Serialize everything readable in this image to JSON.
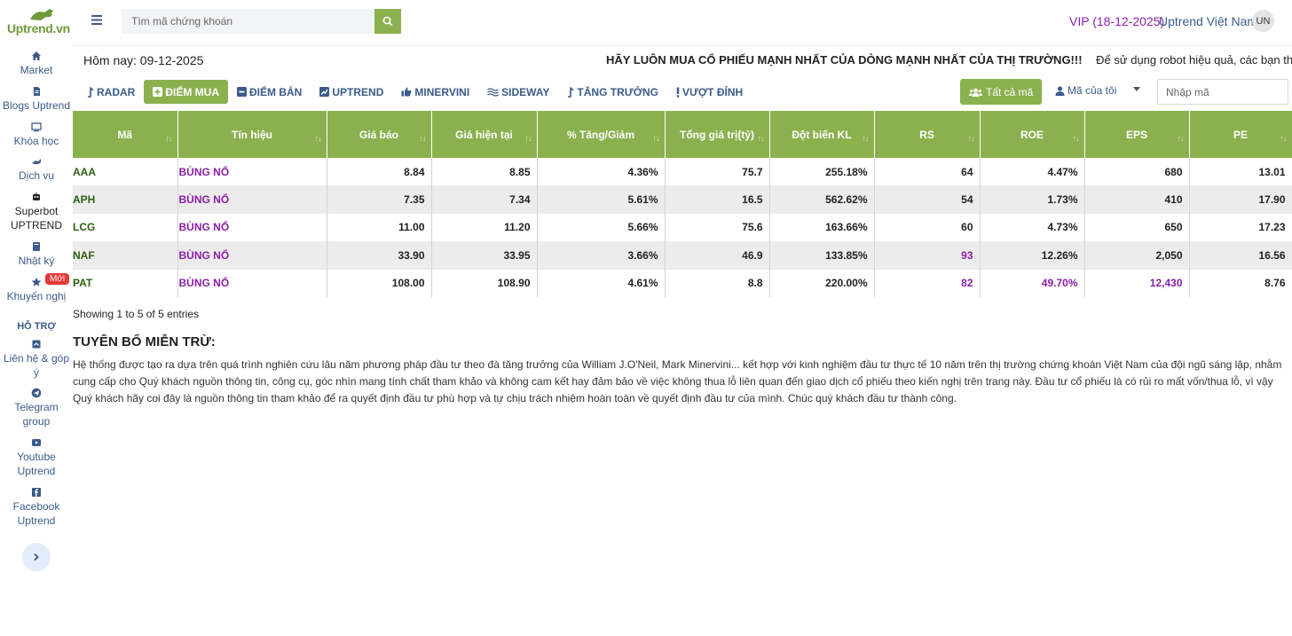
{
  "brand": {
    "logo_text": "Uptrend.vn",
    "accent": "#8bb14f",
    "purple": "#8b1fa9",
    "link": "#3b5b8a"
  },
  "sidebar": {
    "items": [
      {
        "label": "Market",
        "icon": "home-icon"
      },
      {
        "label": "Blogs Uptrend",
        "icon": "file-icon"
      },
      {
        "label": "Khóa học",
        "icon": "monitor-icon"
      },
      {
        "label": "Dịch vụ",
        "icon": "service-icon"
      },
      {
        "label": "Superbot UPTREND",
        "icon": "robot-icon"
      },
      {
        "label": "Nhật ký",
        "icon": "book-icon"
      },
      {
        "label": "Khuyến nghị",
        "icon": "star-icon",
        "badge": "Mới"
      }
    ],
    "support_title": "HỖ TRỢ",
    "support_items": [
      {
        "label": "Liên hệ & góp ý",
        "icon": "contact-icon"
      },
      {
        "label": "Telegram group",
        "icon": "telegram-icon"
      },
      {
        "label": "Youtube Uptrend",
        "icon": "youtube-icon"
      },
      {
        "label": "Facebook Uptrend",
        "icon": "facebook-icon"
      }
    ]
  },
  "topbar": {
    "search_placeholder": "Tìm mã chứng khoán",
    "vip": "VIP (18-12-2025)",
    "username": "Uptrend Việt Nam",
    "avatar_initials": "UN"
  },
  "info": {
    "today": "Hôm nay: 09-12-2025",
    "headline": "HÃY LUÔN MUA CỔ PHIẾU MẠNH NHẤT CỦA DÒNG MẠNH NHẤT CỦA THỊ TRƯỜNG!!!",
    "subline": "Để sử dụng robot hiệu quả, các bạn tham gia nh"
  },
  "tabs": [
    {
      "label": "RADAR",
      "icon": "arrow-up-icon"
    },
    {
      "label": "ĐIỂM MUA",
      "icon": "plus-square-icon",
      "active": true
    },
    {
      "label": "ĐIỂM BÁN",
      "icon": "minus-square-icon"
    },
    {
      "label": "UPTREND",
      "icon": "chart-icon"
    },
    {
      "label": "MINERVINI",
      "icon": "thumbs-up-icon"
    },
    {
      "label": "SIDEWAY",
      "icon": "wave-icon"
    },
    {
      "label": "TĂNG TRƯỞNG",
      "icon": "arrow-up-icon"
    },
    {
      "label": "VƯỢT ĐỈNH",
      "icon": "exclamation-icon"
    }
  ],
  "filters": {
    "all_codes": "Tất cả mã",
    "my_codes": "Mã của tôi",
    "code_placeholder": "Nhập mã"
  },
  "table": {
    "columns": [
      "Mã",
      "Tín hiệu",
      "Giá báo",
      "Giá hiện tại",
      "% Tăng/Giảm",
      "Tổng giá trị(tỷ)",
      "Đột biến KL",
      "RS",
      "ROE",
      "EPS",
      "PE"
    ],
    "rows": [
      {
        "code": "AAA",
        "signal": "BÙNG NỔ",
        "alert_price": "8.84",
        "current_price": "8.85",
        "change": "4.36%",
        "total_value": "75.7",
        "vol_spike": "255.18%",
        "rs": "64",
        "roe": "4.47%",
        "eps": "680",
        "pe": "13.01"
      },
      {
        "code": "APH",
        "signal": "BÙNG NỔ",
        "alert_price": "7.35",
        "current_price": "7.34",
        "change": "5.61%",
        "total_value": "16.5",
        "vol_spike": "562.62%",
        "rs": "54",
        "roe": "1.73%",
        "eps": "410",
        "pe": "17.90"
      },
      {
        "code": "LCG",
        "signal": "BÙNG NỔ",
        "alert_price": "11.00",
        "current_price": "11.20",
        "change": "5.66%",
        "total_value": "75.6",
        "vol_spike": "163.66%",
        "rs": "60",
        "roe": "4.73%",
        "eps": "650",
        "pe": "17.23"
      },
      {
        "code": "NAF",
        "signal": "BÙNG NỔ",
        "alert_price": "33.90",
        "current_price": "33.95",
        "change": "3.66%",
        "total_value": "46.9",
        "vol_spike": "133.85%",
        "rs": "93",
        "roe": "12.26%",
        "eps": "2,050",
        "pe": "16.56"
      },
      {
        "code": "PAT",
        "signal": "BÙNG NỔ",
        "alert_price": "108.00",
        "current_price": "108.90",
        "change": "4.61%",
        "total_value": "8.8",
        "vol_spike": "220.00%",
        "rs": "82",
        "roe": "49.70%",
        "eps": "12,430",
        "pe": "8.76"
      }
    ],
    "showing": "Showing 1 to 5 of 5 entries"
  },
  "disclaimer": {
    "title": "TUYÊN BỐ MIỄN TRỪ:",
    "text": "Hệ thống được tạo ra dựa trên quá trình nghiên cứu lâu năm phương pháp đầu tư theo đà tăng trưởng của William J.O'Neil, Mark Minervini... kết hợp với kinh nghiệm đầu tư thực tế 10 năm trên thị trường chứng khoán Việt Nam của đội ngũ sáng lập, nhằm cung cấp cho Quý khách nguồn thông tin, công cụ, góc nhìn mang tính chất tham khảo và không cam kết hay đảm bảo về việc không thua lỗ liên quan đến giao dịch cổ phiếu theo kiến nghị trên trang này. Đầu tư cổ phiếu là có rủi ro mất vốn/thua lỗ, vì vậy Quý khách hãy coi đây là nguồn thông tin tham khảo để ra quyết định đầu tư phù hợp và tự chịu trách nhiệm hoàn toàn về quyết định đầu tư của mình. Chúc quý khách đầu tư thành công."
  }
}
